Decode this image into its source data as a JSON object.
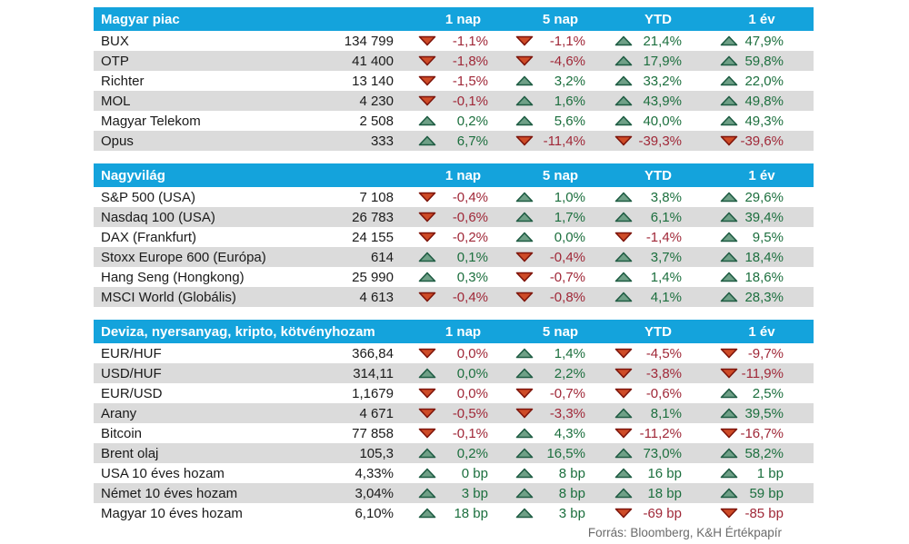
{
  "colors": {
    "header_bg": "#14a3dc",
    "header_text": "#ffffff",
    "stripe": "#dbdbdb",
    "text": "#1a1a1a",
    "green_text": "#1c6f3e",
    "red_text": "#a02838",
    "triangle_up_fill": "#6fa087",
    "triangle_up_stroke": "#1f5c43",
    "triangle_down_fill": "#ce4b27",
    "triangle_down_stroke": "#7e150b",
    "footer_text": "#6b6b6b"
  },
  "footer": {
    "source_label": "Forrás: Bloomberg, K&H Értékpapír"
  },
  "chart_data": [
    {
      "type": "table",
      "title": "Magyar piac",
      "columns": [
        "1 nap",
        "5 nap",
        "YTD",
        "1 év"
      ],
      "rows": [
        {
          "name": "BUX",
          "value": "134 799",
          "changes": [
            {
              "dir": "down",
              "text": "-1,1%"
            },
            {
              "dir": "down",
              "text": "-1,1%"
            },
            {
              "dir": "up",
              "text": "21,4%"
            },
            {
              "dir": "up",
              "text": "47,9%"
            }
          ]
        },
        {
          "name": "OTP",
          "value": "41 400",
          "changes": [
            {
              "dir": "down",
              "text": "-1,8%"
            },
            {
              "dir": "down",
              "text": "-4,6%"
            },
            {
              "dir": "up",
              "text": "17,9%"
            },
            {
              "dir": "up",
              "text": "59,8%"
            }
          ]
        },
        {
          "name": "Richter",
          "value": "13 140",
          "changes": [
            {
              "dir": "down",
              "text": "-1,5%"
            },
            {
              "dir": "up",
              "text": "3,2%"
            },
            {
              "dir": "up",
              "text": "33,2%"
            },
            {
              "dir": "up",
              "text": "22,0%"
            }
          ]
        },
        {
          "name": "MOL",
          "value": "4 230",
          "changes": [
            {
              "dir": "down",
              "text": "-0,1%"
            },
            {
              "dir": "up",
              "text": "1,6%"
            },
            {
              "dir": "up",
              "text": "43,9%"
            },
            {
              "dir": "up",
              "text": "49,8%"
            }
          ]
        },
        {
          "name": "Magyar Telekom",
          "value": "2 508",
          "changes": [
            {
              "dir": "up",
              "text": "0,2%"
            },
            {
              "dir": "up",
              "text": "5,6%"
            },
            {
              "dir": "up",
              "text": "40,0%"
            },
            {
              "dir": "up",
              "text": "49,3%"
            }
          ]
        },
        {
          "name": "Opus",
          "value": "333",
          "changes": [
            {
              "dir": "up",
              "text": "6,7%"
            },
            {
              "dir": "down",
              "text": "-11,4%"
            },
            {
              "dir": "down",
              "text": "-39,3%"
            },
            {
              "dir": "down",
              "text": "-39,6%"
            }
          ]
        }
      ]
    },
    {
      "type": "table",
      "title": "Nagyvilág",
      "columns": [
        "1 nap",
        "5 nap",
        "YTD",
        "1 év"
      ],
      "rows": [
        {
          "name": "S&P 500 (USA)",
          "value": "7 108",
          "changes": [
            {
              "dir": "down",
              "text": "-0,4%"
            },
            {
              "dir": "up",
              "text": "1,0%"
            },
            {
              "dir": "up",
              "text": "3,8%"
            },
            {
              "dir": "up",
              "text": "29,6%"
            }
          ]
        },
        {
          "name": "Nasdaq 100 (USA)",
          "value": "26 783",
          "changes": [
            {
              "dir": "down",
              "text": "-0,6%"
            },
            {
              "dir": "up",
              "text": "1,7%"
            },
            {
              "dir": "up",
              "text": "6,1%"
            },
            {
              "dir": "up",
              "text": "39,4%"
            }
          ]
        },
        {
          "name": "DAX (Frankfurt)",
          "value": "24 155",
          "changes": [
            {
              "dir": "down",
              "text": "-0,2%"
            },
            {
              "dir": "up",
              "text": "0,0%"
            },
            {
              "dir": "down",
              "text": "-1,4%"
            },
            {
              "dir": "up",
              "text": "9,5%"
            }
          ]
        },
        {
          "name": "Stoxx Europe 600 (Európa)",
          "value": "614",
          "changes": [
            {
              "dir": "up",
              "text": "0,1%"
            },
            {
              "dir": "down",
              "text": "-0,4%"
            },
            {
              "dir": "up",
              "text": "3,7%"
            },
            {
              "dir": "up",
              "text": "18,4%"
            }
          ]
        },
        {
          "name": "Hang Seng (Hongkong)",
          "value": "25 990",
          "changes": [
            {
              "dir": "up",
              "text": "0,3%"
            },
            {
              "dir": "down",
              "text": "-0,7%"
            },
            {
              "dir": "up",
              "text": "1,4%"
            },
            {
              "dir": "up",
              "text": "18,6%"
            }
          ]
        },
        {
          "name": "MSCI World (Globális)",
          "value": "4 613",
          "changes": [
            {
              "dir": "down",
              "text": "-0,4%"
            },
            {
              "dir": "down",
              "text": "-0,8%"
            },
            {
              "dir": "up",
              "text": "4,1%"
            },
            {
              "dir": "up",
              "text": "28,3%"
            }
          ]
        }
      ]
    },
    {
      "type": "table",
      "title": "Deviza, nyersanyag, kripto, kötvényhozam",
      "columns": [
        "1 nap",
        "5 nap",
        "YTD",
        "1 év"
      ],
      "rows": [
        {
          "name": "EUR/HUF",
          "value": "366,84",
          "changes": [
            {
              "dir": "down",
              "text": "0,0%"
            },
            {
              "dir": "up",
              "text": "1,4%"
            },
            {
              "dir": "down",
              "text": "-4,5%"
            },
            {
              "dir": "down",
              "text": "-9,7%"
            }
          ]
        },
        {
          "name": "USD/HUF",
          "value": "314,11",
          "changes": [
            {
              "dir": "up",
              "text": "0,0%"
            },
            {
              "dir": "up",
              "text": "2,2%"
            },
            {
              "dir": "down",
              "text": "-3,8%"
            },
            {
              "dir": "down",
              "text": "-11,9%"
            }
          ]
        },
        {
          "name": "EUR/USD",
          "value": "1,1679",
          "changes": [
            {
              "dir": "down",
              "text": "0,0%"
            },
            {
              "dir": "down",
              "text": "-0,7%"
            },
            {
              "dir": "down",
              "text": "-0,6%"
            },
            {
              "dir": "up",
              "text": "2,5%"
            }
          ]
        },
        {
          "name": "Arany",
          "value": "4 671",
          "changes": [
            {
              "dir": "down",
              "text": "-0,5%"
            },
            {
              "dir": "down",
              "text": "-3,3%"
            },
            {
              "dir": "up",
              "text": "8,1%"
            },
            {
              "dir": "up",
              "text": "39,5%"
            }
          ]
        },
        {
          "name": "Bitcoin",
          "value": "77 858",
          "changes": [
            {
              "dir": "down",
              "text": "-0,1%"
            },
            {
              "dir": "up",
              "text": "4,3%"
            },
            {
              "dir": "down",
              "text": "-11,2%"
            },
            {
              "dir": "down",
              "text": "-16,7%"
            }
          ]
        },
        {
          "name": "Brent olaj",
          "value": "105,3",
          "changes": [
            {
              "dir": "up",
              "text": "0,2%"
            },
            {
              "dir": "up",
              "text": "16,5%"
            },
            {
              "dir": "up",
              "text": "73,0%"
            },
            {
              "dir": "up",
              "text": "58,2%"
            }
          ]
        },
        {
          "name": "USA 10 éves hozam",
          "value": "4,33%",
          "changes": [
            {
              "dir": "up",
              "text": "0 bp"
            },
            {
              "dir": "up",
              "text": "8 bp"
            },
            {
              "dir": "up",
              "text": "16 bp"
            },
            {
              "dir": "up",
              "text": "1 bp"
            }
          ]
        },
        {
          "name": "Német 10 éves hozam",
          "value": "3,04%",
          "changes": [
            {
              "dir": "up",
              "text": "3 bp"
            },
            {
              "dir": "up",
              "text": "8 bp"
            },
            {
              "dir": "up",
              "text": "18 bp"
            },
            {
              "dir": "up",
              "text": "59 bp"
            }
          ]
        },
        {
          "name": "Magyar 10 éves hozam",
          "value": "6,10%",
          "changes": [
            {
              "dir": "up",
              "text": "18 bp"
            },
            {
              "dir": "up",
              "text": "3 bp"
            },
            {
              "dir": "down",
              "text": "-69 bp"
            },
            {
              "dir": "down",
              "text": "-85 bp"
            }
          ]
        }
      ]
    }
  ]
}
